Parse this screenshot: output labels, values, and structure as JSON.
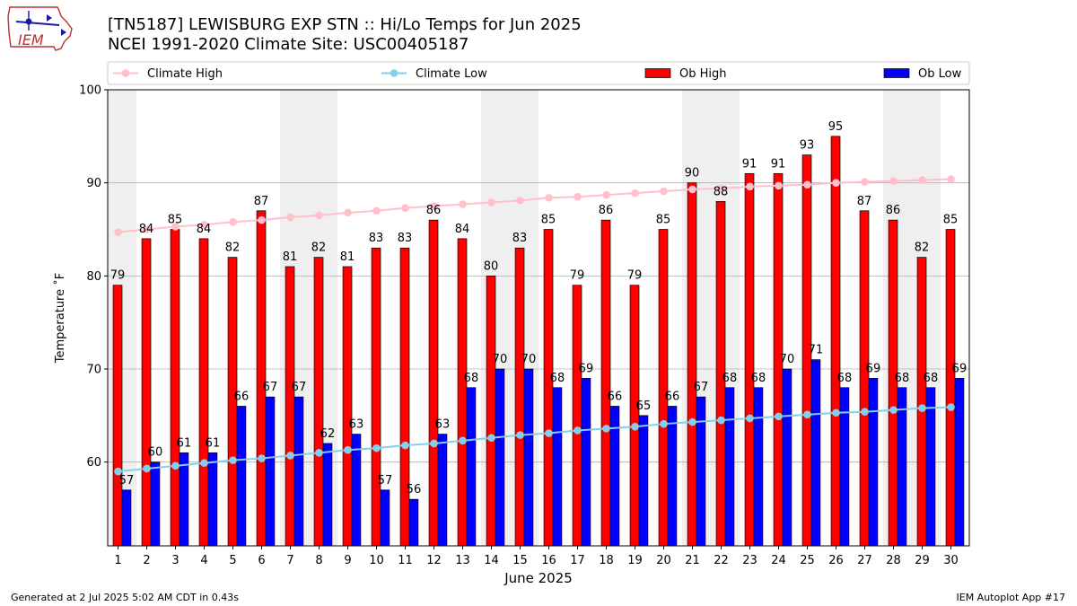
{
  "title_line1": "[TN5187] LEWISBURG EXP STN :: Hi/Lo Temps for Jun 2025",
  "title_line2": "NCEI 1991-2020 Climate Site: USC00405187",
  "logo_text": "IEM",
  "footer_left": "Generated at 2 Jul 2025 5:02 AM CDT in 0.43s",
  "footer_right": "IEM Autoplot App #17",
  "colors": {
    "ob_high": "#ff0000",
    "ob_low": "#0000ff",
    "climate_high": "#ffc0cb",
    "climate_low": "#87ceeb",
    "weekend_shade": "#efefef",
    "grid": "#b0b0b0"
  },
  "chart_data": {
    "type": "bar",
    "xlabel": "June 2025",
    "ylabel": "Temperature ˚F",
    "ylim": [
      51,
      100
    ],
    "yticks": [
      60,
      70,
      80,
      90,
      100
    ],
    "grid": "horizontal",
    "legend_position": "top",
    "legend": [
      "Climate High",
      "Climate Low",
      "Ob High",
      "Ob Low"
    ],
    "categories": [
      "1",
      "2",
      "3",
      "4",
      "5",
      "6",
      "7",
      "8",
      "9",
      "10",
      "11",
      "12",
      "13",
      "14",
      "15",
      "16",
      "17",
      "18",
      "19",
      "20",
      "21",
      "22",
      "23",
      "24",
      "25",
      "26",
      "27",
      "28",
      "29",
      "30"
    ],
    "shaded_days": [
      1,
      7,
      8,
      14,
      15,
      21,
      22,
      28,
      29
    ],
    "series": [
      {
        "name": "Ob High",
        "kind": "bar",
        "values": [
          79,
          84,
          85,
          84,
          82,
          87,
          81,
          82,
          81,
          83,
          83,
          86,
          84,
          80,
          83,
          85,
          79,
          86,
          79,
          85,
          90,
          88,
          91,
          91,
          93,
          95,
          87,
          86,
          82,
          85
        ]
      },
      {
        "name": "Ob Low",
        "kind": "bar",
        "values": [
          57,
          60,
          61,
          61,
          66,
          67,
          67,
          62,
          63,
          57,
          56,
          63,
          68,
          70,
          70,
          68,
          69,
          66,
          65,
          66,
          67,
          68,
          68,
          70,
          71,
          68,
          69,
          68,
          68,
          69
        ]
      },
      {
        "name": "Climate High",
        "kind": "line",
        "values": [
          84.7,
          85.0,
          85.3,
          85.5,
          85.8,
          86.0,
          86.3,
          86.5,
          86.8,
          87.0,
          87.3,
          87.5,
          87.7,
          87.9,
          88.1,
          88.4,
          88.5,
          88.7,
          88.9,
          89.1,
          89.3,
          89.4,
          89.6,
          89.7,
          89.8,
          90.0,
          90.1,
          90.2,
          90.3,
          90.4
        ]
      },
      {
        "name": "Climate Low",
        "kind": "line",
        "values": [
          59.0,
          59.3,
          59.6,
          59.9,
          60.2,
          60.4,
          60.7,
          61.0,
          61.3,
          61.5,
          61.8,
          62.0,
          62.3,
          62.6,
          62.9,
          63.1,
          63.4,
          63.6,
          63.8,
          64.1,
          64.3,
          64.5,
          64.7,
          64.9,
          65.1,
          65.3,
          65.4,
          65.6,
          65.8,
          65.9
        ]
      }
    ]
  }
}
